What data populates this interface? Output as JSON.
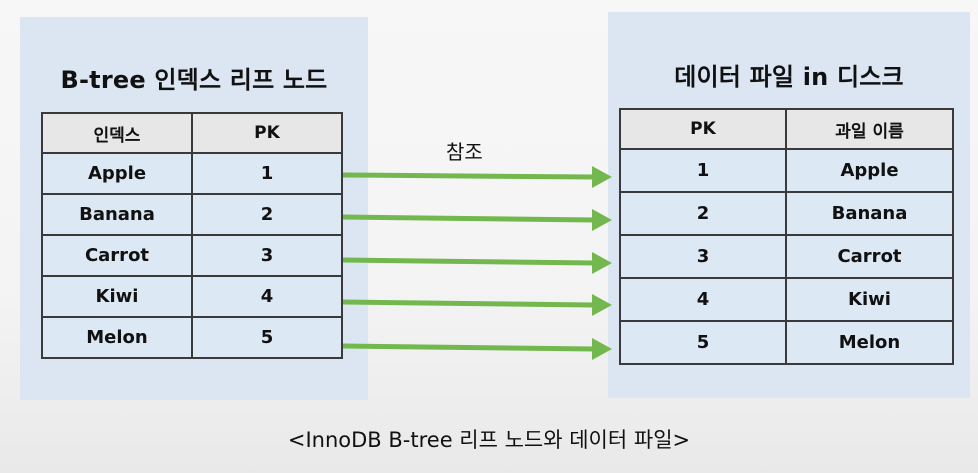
{
  "left_panel": {
    "title": "B-tree 인덱스 리프 노드",
    "headers": [
      "인덱스",
      "PK"
    ],
    "rows": [
      [
        "Apple",
        "1"
      ],
      [
        "Banana",
        "2"
      ],
      [
        "Carrot",
        "3"
      ],
      [
        "Kiwi",
        "4"
      ],
      [
        "Melon",
        "5"
      ]
    ]
  },
  "right_panel": {
    "title": "데이터 파일 in 디스크",
    "headers": [
      "PK",
      "과일 이름"
    ],
    "rows": [
      [
        "1",
        "Apple"
      ],
      [
        "2",
        "Banana"
      ],
      [
        "3",
        "Carrot"
      ],
      [
        "4",
        "Kiwi"
      ],
      [
        "5",
        "Melon"
      ]
    ]
  },
  "reference_label": "참조",
  "caption": "<InnoDB B-tree 리프 노드와 데이터 파일>",
  "colors": {
    "panel_bg": "#dce6f3",
    "header_bg": "#e7e7e7",
    "cell_bg": "#dde8f5",
    "arrow": "#73b84e",
    "border": "#3a3a3a"
  }
}
